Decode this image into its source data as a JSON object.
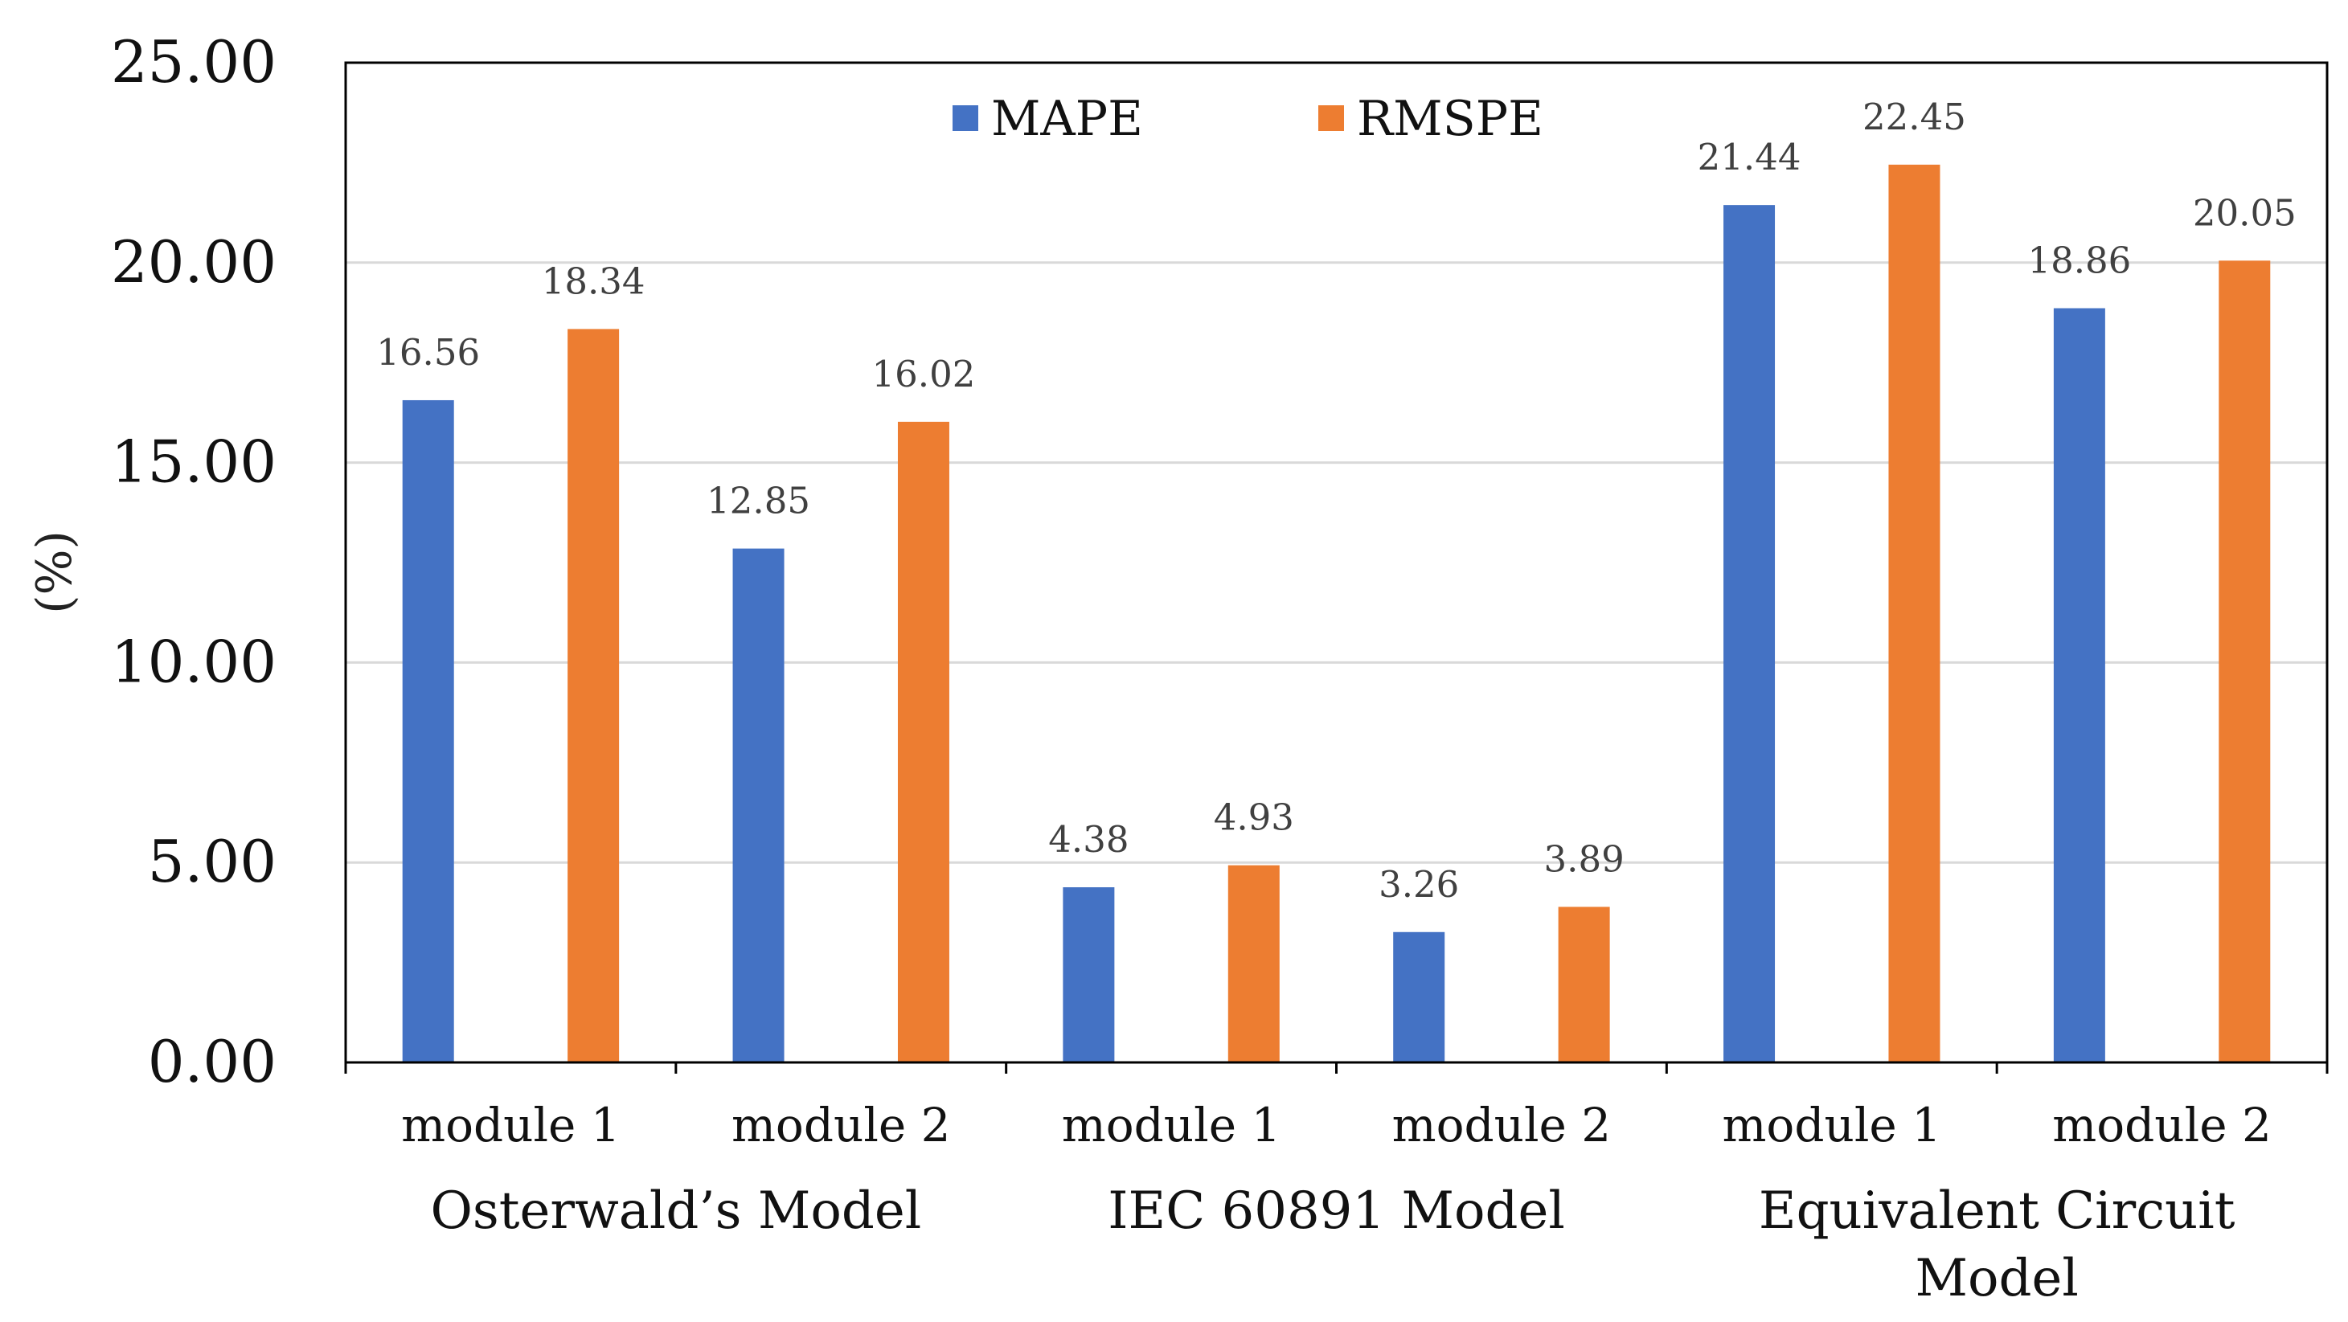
{
  "chart_data": {
    "type": "bar",
    "title": "",
    "xlabel": "",
    "ylabel": "(%)",
    "ylim": [
      0,
      25
    ],
    "yticks": [
      "0.00",
      "5.00",
      "10.00",
      "15.00",
      "20.00",
      "25.00"
    ],
    "grid": true,
    "legend_position": "top-center",
    "groups": [
      {
        "name": "Osterwald’s Model",
        "lines": [
          "Osterwald’s Model"
        ],
        "categories": [
          "module 1",
          "module 2"
        ]
      },
      {
        "name": "IEC 60891 Model",
        "lines": [
          "IEC 60891 Model"
        ],
        "categories": [
          "module 1",
          "module 2"
        ]
      },
      {
        "name": "Equivalent Circuit Model",
        "lines": [
          "Equivalent Circuit",
          "Model"
        ],
        "categories": [
          "module 1",
          "module 2"
        ]
      }
    ],
    "categories": [
      "module 1",
      "module 2",
      "module 1",
      "module 2",
      "module 1",
      "module 2"
    ],
    "series": [
      {
        "name": "MAPE",
        "color": "#4472C4",
        "values": [
          16.56,
          12.85,
          4.38,
          3.26,
          21.44,
          18.86
        ],
        "labels": [
          "16.56",
          "12.85",
          "4.38",
          "3.26",
          "21.44",
          "18.86"
        ]
      },
      {
        "name": "RMSPE",
        "color": "#ED7D31",
        "values": [
          18.34,
          16.02,
          4.93,
          3.89,
          22.45,
          20.05
        ],
        "labels": [
          "18.34",
          "16.02",
          "4.93",
          "3.89",
          "22.45",
          "20.05"
        ]
      }
    ]
  }
}
